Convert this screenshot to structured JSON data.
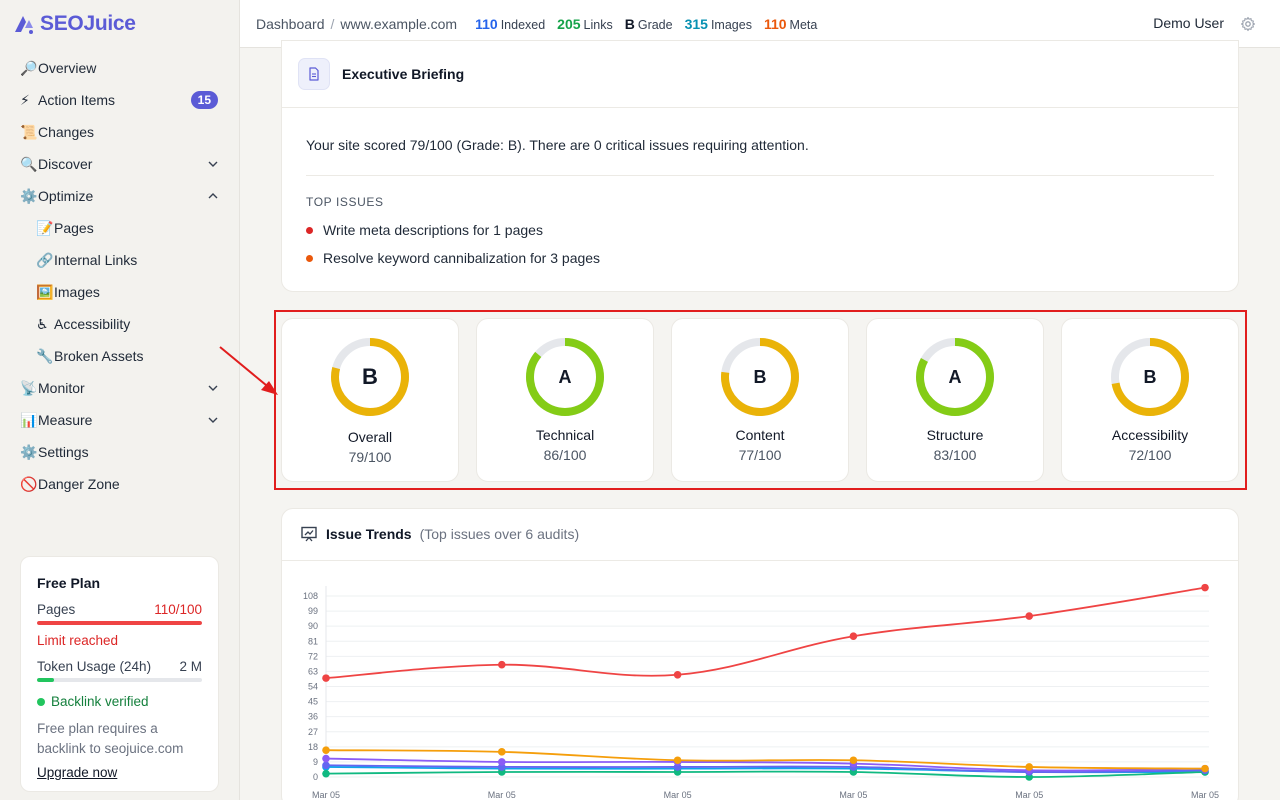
{
  "app": {
    "name": "SEOJuice"
  },
  "sidebar": {
    "items": [
      {
        "emoji": "🔎",
        "label": "Overview"
      },
      {
        "emoji": "⚡",
        "label": "Action Items",
        "badge": "15"
      },
      {
        "emoji": "📜",
        "label": "Changes"
      },
      {
        "emoji": "🔍",
        "label": "Discover",
        "chevron": "down"
      },
      {
        "emoji": "⚙️",
        "label": "Optimize",
        "chevron": "up"
      },
      {
        "emoji": "📝",
        "label": "Pages",
        "sub": true
      },
      {
        "emoji": "🔗",
        "label": "Internal Links",
        "sub": true
      },
      {
        "emoji": "🖼️",
        "label": "Images",
        "sub": true
      },
      {
        "emoji": "♿",
        "label": "Accessibility",
        "sub": true
      },
      {
        "emoji": "🔧",
        "label": "Broken Assets",
        "sub": true
      },
      {
        "emoji": "📡",
        "label": "Monitor",
        "chevron": "down"
      },
      {
        "emoji": "📊",
        "label": "Measure",
        "chevron": "down"
      },
      {
        "emoji": "⚙️",
        "label": "Settings"
      },
      {
        "emoji": "🚫",
        "label": "Danger Zone"
      }
    ]
  },
  "plan": {
    "title": "Free Plan",
    "pages_label": "Pages",
    "pages_value": "110/100",
    "pages_fraction": 1.0,
    "limit_text": "Limit reached",
    "token_label": "Token Usage (24h)",
    "token_value": "2 M",
    "token_fraction": 0.1,
    "backlink_text": "Backlink verified",
    "note": "Free plan requires a backlink to seojuice.com",
    "upgrade_label": "Upgrade now"
  },
  "topbar": {
    "breadcrumb": [
      "Dashboard",
      "www.example.com"
    ],
    "stats": [
      {
        "value": "110",
        "label": "Indexed",
        "color": "#2563eb"
      },
      {
        "value": "205",
        "label": "Links",
        "color": "#16a34a"
      },
      {
        "value": "B",
        "label": "Grade",
        "color": "#111827"
      },
      {
        "value": "315",
        "label": "Images",
        "color": "#0891b2"
      },
      {
        "value": "110",
        "label": "Meta",
        "color": "#ea580c"
      }
    ],
    "user": "Demo User"
  },
  "briefing": {
    "title": "Executive Briefing",
    "summary": "Your site scored 79/100 (Grade: B). There are 0 critical issues requiring attention.",
    "top_issues_heading": "TOP ISSUES",
    "issues": [
      {
        "text": "Write meta descriptions for 1 pages",
        "color": "#dc2626"
      },
      {
        "text": "Resolve keyword cannibalization for 3 pages",
        "color": "#ea580c"
      }
    ]
  },
  "scores": [
    {
      "name": "Overall",
      "grade": "B",
      "value": "79/100",
      "score": 79,
      "color": "#eab308"
    },
    {
      "name": "Technical",
      "grade": "A",
      "value": "86/100",
      "score": 86,
      "color": "#84cc16"
    },
    {
      "name": "Content",
      "grade": "B",
      "value": "77/100",
      "score": 77,
      "color": "#eab308"
    },
    {
      "name": "Structure",
      "grade": "A",
      "value": "83/100",
      "score": 83,
      "color": "#84cc16"
    },
    {
      "name": "Accessibility",
      "grade": "B",
      "value": "72/100",
      "score": 72,
      "color": "#eab308"
    }
  ],
  "trends": {
    "title": "Issue Trends",
    "subtitle": "(Top issues over 6 audits)"
  },
  "chart_data": {
    "type": "line",
    "x": [
      "Mar 05",
      "Mar 05",
      "Mar 05",
      "Mar 05",
      "Mar 05",
      "Mar 05"
    ],
    "yticks": [
      0,
      9,
      18,
      27,
      36,
      45,
      54,
      63,
      72,
      81,
      90,
      99,
      108
    ],
    "ylim": [
      0,
      108
    ],
    "series": [
      {
        "values": [
          59,
          67,
          61,
          84,
          96,
          113
        ],
        "color": "#ef4444"
      },
      {
        "values": [
          16,
          15,
          10,
          10,
          6,
          5
        ],
        "color": "#f59e0b"
      },
      {
        "values": [
          11,
          9,
          9,
          8,
          4,
          5
        ],
        "color": "#8b5cf6"
      },
      {
        "values": [
          7,
          6,
          6,
          6,
          3,
          4
        ],
        "color": "#6366f1"
      },
      {
        "values": [
          2,
          3,
          3,
          3,
          0,
          3
        ],
        "color": "#10b981"
      },
      {
        "values": [
          6,
          5,
          5,
          5,
          3,
          3
        ],
        "color": "#0ea5e9"
      }
    ]
  }
}
